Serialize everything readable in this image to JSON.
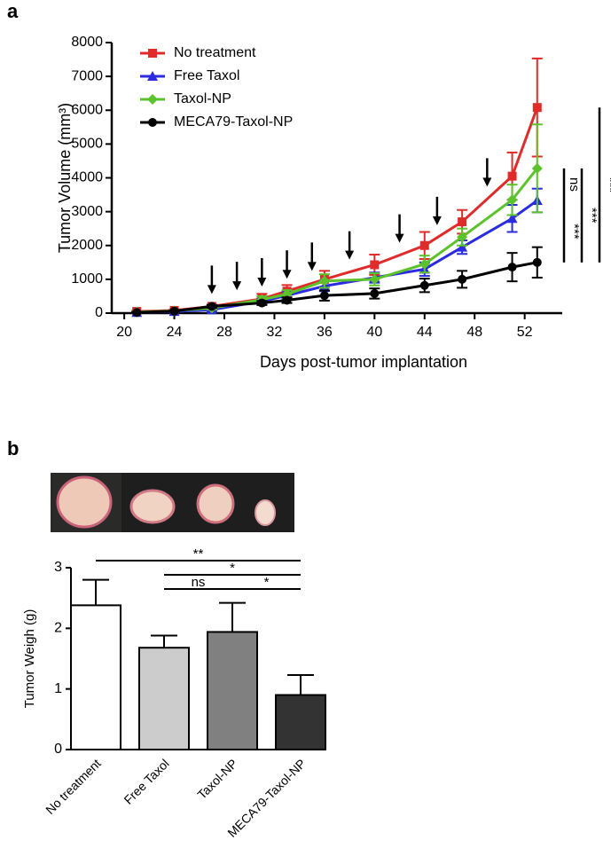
{
  "chart_data": [
    {
      "type": "line",
      "panel": "a",
      "xlabel": "Days post-tumor implantation",
      "ylabel": "Tumor Volume (mm³)",
      "x": [
        21,
        24,
        27,
        31,
        33,
        36,
        40,
        44,
        47,
        51,
        53
      ],
      "xlim": [
        19,
        55
      ],
      "xticks": [
        20,
        24,
        28,
        32,
        36,
        40,
        44,
        48,
        52
      ],
      "ylim": [
        0,
        8000
      ],
      "yticks": [
        0,
        1000,
        2000,
        3000,
        4000,
        5000,
        6000,
        7000,
        8000
      ],
      "arrows": [
        27,
        29,
        31,
        33,
        35,
        38,
        42,
        45,
        49
      ],
      "legend": "upper left",
      "series": [
        {
          "name": "No treatment",
          "color": "#e02b2b",
          "marker": "square",
          "values": [
            50,
            80,
            200,
            420,
            650,
            1000,
            1430,
            2000,
            2700,
            4050,
            6080
          ],
          "errors": [
            20,
            30,
            50,
            150,
            180,
            250,
            300,
            400,
            350,
            700,
            1450
          ]
        },
        {
          "name": "Free Taxol",
          "color": "#2b2be0",
          "marker": "triangle",
          "values": [
            20,
            50,
            100,
            350,
            520,
            800,
            1050,
            1300,
            1950,
            2800,
            3330
          ],
          "errors": [
            15,
            20,
            40,
            80,
            100,
            150,
            150,
            200,
            200,
            400,
            350
          ]
        },
        {
          "name": "Taxol-NP",
          "color": "#5cc22b",
          "marker": "diamond",
          "values": [
            30,
            70,
            150,
            400,
            560,
            950,
            1000,
            1450,
            2250,
            3350,
            4280
          ],
          "errors": [
            15,
            20,
            40,
            100,
            120,
            200,
            180,
            250,
            250,
            450,
            1300
          ]
        },
        {
          "name": "MECA79-Taxol-NP",
          "color": "#000000",
          "marker": "circle",
          "values": [
            20,
            60,
            200,
            300,
            380,
            520,
            580,
            820,
            1000,
            1360,
            1500
          ],
          "errors": [
            10,
            20,
            40,
            60,
            80,
            150,
            150,
            200,
            250,
            420,
            450
          ]
        }
      ],
      "significance": [
        {
          "label": "ns",
          "between": [
            1,
            2
          ]
        },
        {
          "label": "***",
          "between": [
            3,
            1
          ]
        },
        {
          "label": "***",
          "between": [
            3,
            2
          ]
        },
        {
          "label": "***",
          "between": [
            3,
            0
          ]
        }
      ]
    },
    {
      "type": "bar",
      "panel": "b",
      "ylabel": "Tumor Weigh (g)",
      "categories": [
        "No treatment",
        "Free Taxol",
        "Taxol-NP",
        "MECA79-Taxol-NP"
      ],
      "values": [
        2.38,
        1.68,
        1.94,
        0.9
      ],
      "errors": [
        0.42,
        0.2,
        0.48,
        0.33
      ],
      "colors": [
        "#ffffff",
        "#cccccc",
        "#808080",
        "#333333"
      ],
      "ylim": [
        0,
        3
      ],
      "yticks": [
        0,
        1,
        2,
        3
      ],
      "significance": [
        {
          "label": "**",
          "between": [
            0,
            3
          ]
        },
        {
          "label": "*",
          "between": [
            1,
            3
          ]
        },
        {
          "label": "ns",
          "between": [
            1,
            2
          ]
        },
        {
          "label": "*",
          "between": [
            2,
            3
          ]
        }
      ]
    }
  ]
}
